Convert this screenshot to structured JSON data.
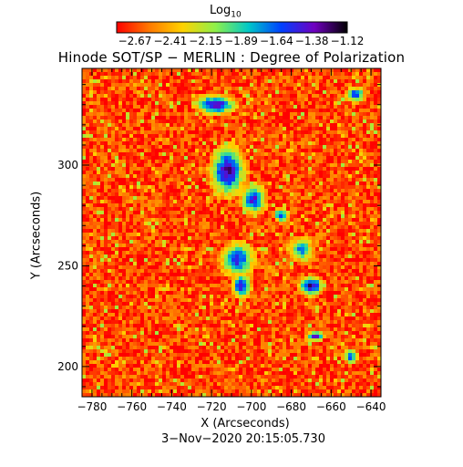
{
  "colorbar": {
    "title_text": "Log",
    "title_sub": "10",
    "tick_labels": [
      "−2.67",
      "−2.41",
      "−2.15",
      "−1.89",
      "−1.64",
      "−1.38",
      "−1.12"
    ],
    "colormap": [
      "#ff0000",
      "#ff7a00",
      "#ffd200",
      "#8ef04a",
      "#00c8c8",
      "#0040ff",
      "#7000c0",
      "#000000"
    ]
  },
  "chart_data": {
    "type": "heatmap",
    "title": "Hinode SOT/SP − MERLIN : Degree of Polarization",
    "xlabel": "X (Arcseconds)",
    "ylabel": "Y (Arcseconds)",
    "xlim": [
      -785,
      -635
    ],
    "ylim": [
      185,
      348
    ],
    "xticks": [
      -780,
      -760,
      -740,
      -720,
      -700,
      -680,
      -660,
      -640
    ],
    "yticks": [
      200,
      250,
      300
    ],
    "xtick_labels": [
      "−780",
      "−760",
      "−740",
      "−720",
      "−700",
      "−680",
      "−660",
      "−640"
    ],
    "ytick_labels": [
      "200",
      "250",
      "300"
    ],
    "value_range": [
      -2.67,
      -1.12
    ],
    "value_label": "Log10 degree of polarization",
    "background_level": -2.55,
    "features": [
      {
        "x": -712,
        "y": 297,
        "rx": 7,
        "ry": 10,
        "level": -1.3
      },
      {
        "x": -718,
        "y": 330,
        "rx": 8,
        "ry": 4,
        "level": -1.3
      },
      {
        "x": -699,
        "y": 283,
        "rx": 5,
        "ry": 6,
        "level": -1.4
      },
      {
        "x": -707,
        "y": 253,
        "rx": 7,
        "ry": 7,
        "level": -1.5
      },
      {
        "x": -705,
        "y": 240,
        "rx": 4,
        "ry": 5,
        "level": -1.4
      },
      {
        "x": -670,
        "y": 240,
        "rx": 5,
        "ry": 4,
        "level": -1.3
      },
      {
        "x": -675,
        "y": 258,
        "rx": 5,
        "ry": 5,
        "level": -1.7
      },
      {
        "x": -668,
        "y": 215,
        "rx": 4,
        "ry": 2,
        "level": -1.4
      },
      {
        "x": -648,
        "y": 335,
        "rx": 4,
        "ry": 3,
        "level": -1.5
      },
      {
        "x": -650,
        "y": 205,
        "rx": 3,
        "ry": 3,
        "level": -1.6
      },
      {
        "x": -685,
        "y": 275,
        "rx": 3,
        "ry": 3,
        "level": -1.5
      }
    ]
  },
  "timestamp": "3−Nov−2020 20:15:05.730"
}
